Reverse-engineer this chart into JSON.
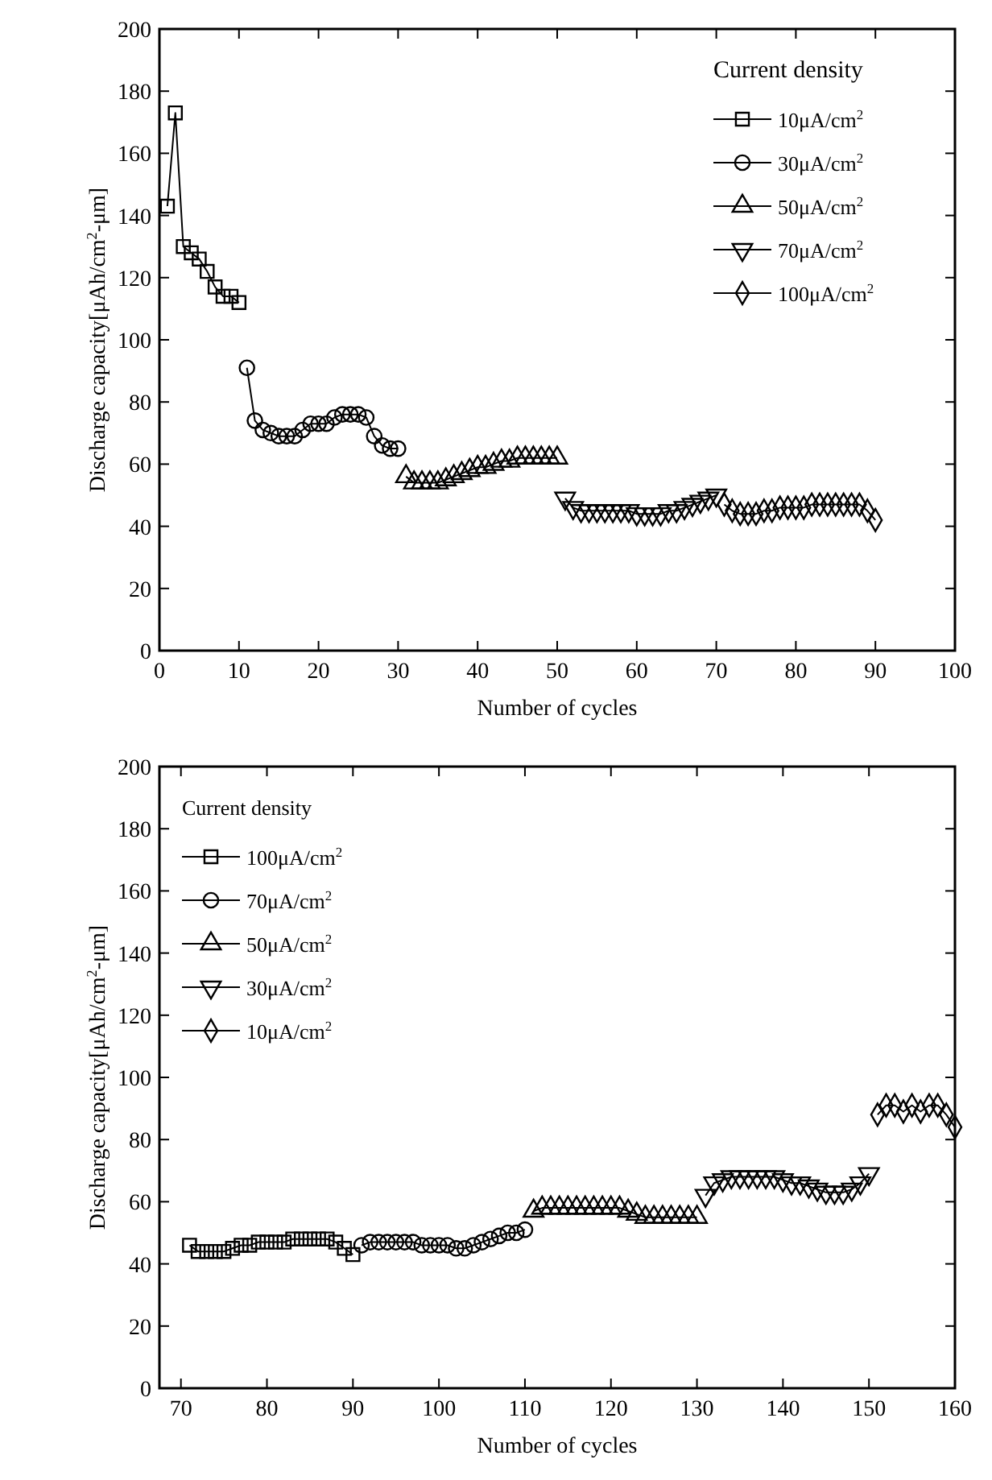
{
  "chart_data": [
    {
      "type": "line",
      "xlabel": "Number of cycles",
      "ylabel": "Discharge capacity[μAh/cm$^{2}$-μm]",
      "legend_title": "Current density",
      "legend": "top right",
      "line_style": "solid",
      "grid": false,
      "xlim": [
        0,
        100
      ],
      "xticks": [
        0,
        10,
        20,
        30,
        40,
        50,
        60,
        70,
        80,
        90,
        100
      ],
      "ylim": [
        0,
        200
      ],
      "yticks": [
        0,
        20,
        40,
        60,
        80,
        100,
        120,
        140,
        160,
        180,
        200
      ],
      "series": [
        {
          "name": "10μA/cm$^{2}$",
          "color": "#000000",
          "marker": "square",
          "x": [
            1,
            2,
            3,
            4,
            5,
            6,
            7,
            8,
            9,
            10
          ],
          "values": [
            143,
            173,
            130,
            128,
            126,
            122,
            117,
            114,
            114,
            112
          ]
        },
        {
          "name": "30μA/cm$^{2}$",
          "color": "#000000",
          "marker": "circle",
          "x": [
            11,
            12,
            13,
            14,
            15,
            16,
            17,
            18,
            19,
            20,
            21,
            22,
            23,
            24,
            25,
            26,
            27,
            28,
            29,
            30
          ],
          "values": [
            91,
            74,
            71,
            70,
            69,
            69,
            69,
            71,
            73,
            73,
            73,
            75,
            76,
            76,
            76,
            75,
            69,
            66,
            65,
            65
          ]
        },
        {
          "name": "50μA/cm$^{2}$",
          "color": "#000000",
          "marker": "triangle",
          "x": [
            31,
            32,
            33,
            34,
            35,
            36,
            37,
            38,
            39,
            40,
            41,
            42,
            43,
            44,
            45,
            46,
            47,
            48,
            49,
            50
          ],
          "values": [
            56,
            54,
            54,
            54,
            54,
            55,
            56,
            57,
            58,
            59,
            59,
            60,
            61,
            61,
            62,
            62,
            62,
            62,
            62,
            62
          ]
        },
        {
          "name": "70μA/cm$^{2}$",
          "color": "#000000",
          "marker": "triangle-down",
          "x": [
            51,
            52,
            53,
            54,
            55,
            56,
            57,
            58,
            59,
            60,
            61,
            62,
            63,
            64,
            65,
            66,
            67,
            68,
            69,
            70
          ],
          "values": [
            49,
            46,
            45,
            45,
            45,
            45,
            45,
            45,
            45,
            44,
            44,
            44,
            44,
            45,
            45,
            46,
            47,
            48,
            49,
            50
          ]
        },
        {
          "name": "100μA/cm$^{2}$",
          "color": "#000000",
          "marker": "diamond",
          "x": [
            71,
            72,
            73,
            74,
            75,
            76,
            77,
            78,
            79,
            80,
            81,
            82,
            83,
            84,
            85,
            86,
            87,
            88,
            89,
            90
          ],
          "values": [
            47,
            45,
            44,
            44,
            44,
            45,
            45,
            46,
            46,
            46,
            46,
            47,
            47,
            47,
            47,
            47,
            47,
            47,
            45,
            42
          ]
        }
      ]
    },
    {
      "type": "line",
      "xlabel": "Number of cycles",
      "ylabel": "Discharge capacity[μAh/cm$^{2}$-μm]",
      "legend_title": "Current density",
      "legend": "top left",
      "line_style": "solid",
      "grid": false,
      "xlim": [
        67.5,
        160
      ],
      "xticks": [
        70,
        80,
        90,
        100,
        110,
        120,
        130,
        140,
        150,
        160
      ],
      "ylim": [
        0,
        200
      ],
      "yticks": [
        0,
        20,
        40,
        60,
        80,
        100,
        120,
        140,
        160,
        180,
        200
      ],
      "series": [
        {
          "name": "100μA/cm$^{2}$",
          "color": "#000000",
          "marker": "square",
          "x": [
            71,
            72,
            73,
            74,
            75,
            76,
            77,
            78,
            79,
            80,
            81,
            82,
            83,
            84,
            85,
            86,
            87,
            88,
            89,
            90
          ],
          "values": [
            46,
            44,
            44,
            44,
            44,
            45,
            46,
            46,
            47,
            47,
            47,
            47,
            48,
            48,
            48,
            48,
            48,
            47,
            45,
            43
          ]
        },
        {
          "name": "70μA/cm$^{2}$",
          "color": "#000000",
          "marker": "circle",
          "x": [
            91,
            92,
            93,
            94,
            95,
            96,
            97,
            98,
            99,
            100,
            101,
            102,
            103,
            104,
            105,
            106,
            107,
            108,
            109,
            110
          ],
          "values": [
            46,
            47,
            47,
            47,
            47,
            47,
            47,
            46,
            46,
            46,
            46,
            45,
            45,
            46,
            47,
            48,
            49,
            50,
            50,
            51
          ]
        },
        {
          "name": "50μA/cm$^{2}$",
          "color": "#000000",
          "marker": "triangle",
          "x": [
            111,
            112,
            113,
            114,
            115,
            116,
            117,
            118,
            119,
            120,
            121,
            122,
            123,
            124,
            125,
            126,
            127,
            128,
            129,
            130
          ],
          "values": [
            57,
            58,
            58,
            58,
            58,
            58,
            58,
            58,
            58,
            58,
            58,
            57,
            56,
            55,
            55,
            55,
            55,
            55,
            55,
            55
          ]
        },
        {
          "name": "30μA/cm$^{2}$",
          "color": "#000000",
          "marker": "triangle-down",
          "x": [
            131,
            132,
            133,
            134,
            135,
            136,
            137,
            138,
            139,
            140,
            141,
            142,
            143,
            144,
            145,
            146,
            147,
            148,
            149,
            150
          ],
          "values": [
            62,
            66,
            67,
            68,
            68,
            68,
            68,
            68,
            68,
            67,
            66,
            66,
            65,
            64,
            63,
            63,
            63,
            64,
            66,
            69
          ]
        },
        {
          "name": "10μA/cm$^{2}$",
          "color": "#000000",
          "marker": "diamond",
          "x": [
            151,
            152,
            153,
            154,
            155,
            156,
            157,
            158,
            159,
            160
          ],
          "values": [
            88,
            91,
            91,
            89,
            91,
            89,
            91,
            91,
            88,
            84
          ]
        }
      ]
    }
  ]
}
